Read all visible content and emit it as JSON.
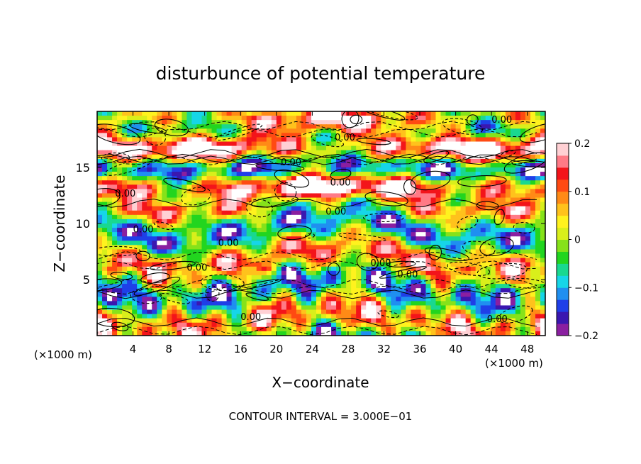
{
  "chart_data": {
    "type": "heatmap",
    "title": "disturbunce of potential temperature",
    "xlabel": "X−coordinate",
    "ylabel": "Z−coordinate",
    "x_unit_left": "(×1000 m)",
    "x_unit_right": "(×1000 m)",
    "x_ticks": [
      4,
      8,
      12,
      16,
      20,
      24,
      28,
      32,
      36,
      40,
      44,
      48
    ],
    "y_ticks": [
      5,
      10,
      15
    ],
    "xlim": [
      0,
      50
    ],
    "ylim": [
      0,
      20
    ],
    "colorbar": {
      "ticks": [
        "0.2",
        "0.1",
        "0",
        "−0.1",
        "−0.2"
      ],
      "range": [
        -0.2,
        0.2
      ],
      "colors": [
        "#8a1fa0",
        "#3a17b0",
        "#1f3fe8",
        "#1f8ff0",
        "#16d6e8",
        "#19d890",
        "#22d51f",
        "#86e21a",
        "#d9ef1b",
        "#fff21e",
        "#ffc21c",
        "#ff8a16",
        "#ff4a12",
        "#f3141a",
        "#ff7a86",
        "#ffd0d4"
      ]
    },
    "contour_labels": [
      "0.00",
      "0.00",
      "0.00",
      "0.00",
      "0.00",
      "0.00",
      "0.00",
      "0.00",
      "0.00",
      "0.00",
      "0.00",
      "0.00",
      "0.00"
    ],
    "contour_interval": "CONTOUR INTERVAL = 3.000E−01"
  }
}
